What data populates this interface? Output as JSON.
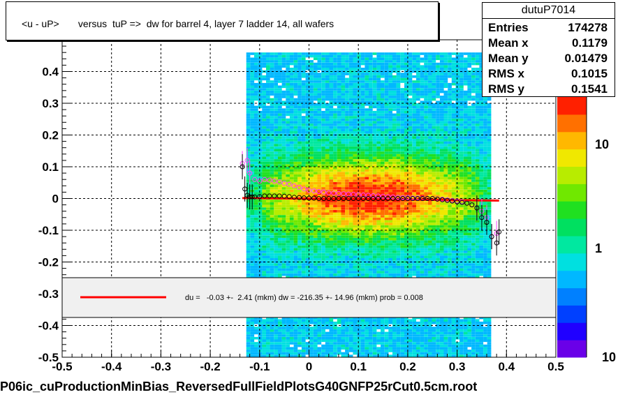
{
  "title": "<u - uP>       versus  tuP =>  dw for barrel 4, layer 7 ladder 14, all wafers",
  "stats": {
    "name": "dutuP7014",
    "rows": [
      {
        "label": "Entries",
        "value": "174278"
      },
      {
        "label": "Mean x",
        "value": "0.1179"
      },
      {
        "label": "Mean y",
        "value": "0.01479"
      },
      {
        "label": "RMS x",
        "value": "0.1015"
      },
      {
        "label": "RMS y",
        "value": "0.1541"
      }
    ]
  },
  "footer": "P06ic_cuProductionMinBias_ReversedFullFieldPlotsG40GNFP25rCut0.5cm.root",
  "legend": {
    "text": "du =   -0.03 +-  2.41 (mkm) dw = -216.35 +- 14.96 (mkm) prob = 0.008",
    "line_color": "#ff0000"
  },
  "chart_data": {
    "type": "heatmap",
    "xlim": [
      -0.5,
      0.5
    ],
    "ylim": [
      -0.5,
      0.5
    ],
    "x_ticks": [
      "-0.5",
      "-0.4",
      "-0.3",
      "-0.2",
      "-0.1",
      "0",
      "0.1",
      "0.2",
      "0.3",
      "0.4",
      "0.5"
    ],
    "y_ticks": [
      "-0.5",
      "-0.4",
      "-0.3",
      "-0.2",
      "-0.1",
      "0",
      "0.1",
      "0.2",
      "0.3",
      "0.4"
    ],
    "grid": true,
    "colorbar_labels": [
      "10",
      "1",
      "10"
    ],
    "fit_line": {
      "x": [
        -0.135,
        0.385
      ],
      "y": [
        0.0015,
        -0.0065
      ],
      "color": "#ff0000"
    },
    "profile_black": {
      "x": [
        -0.135,
        -0.13,
        -0.125,
        -0.12,
        -0.115,
        -0.11,
        -0.1,
        -0.09,
        -0.08,
        -0.07,
        -0.06,
        -0.05,
        -0.04,
        -0.03,
        -0.02,
        -0.01,
        0.0,
        0.01,
        0.02,
        0.03,
        0.04,
        0.05,
        0.06,
        0.07,
        0.08,
        0.09,
        0.1,
        0.11,
        0.12,
        0.13,
        0.14,
        0.15,
        0.16,
        0.17,
        0.18,
        0.19,
        0.2,
        0.21,
        0.22,
        0.23,
        0.24,
        0.25,
        0.26,
        0.27,
        0.28,
        0.29,
        0.3,
        0.31,
        0.32,
        0.33,
        0.34,
        0.35,
        0.36,
        0.37,
        0.38,
        0.385
      ],
      "y": [
        0.1,
        0.03,
        0.01,
        0.005,
        0.005,
        0.005,
        0.006,
        0.008,
        0.008,
        0.008,
        0.008,
        0.007,
        0.006,
        0.004,
        0.003,
        0.002,
        0.001,
        0.001,
        0.0,
        0.0,
        0.0,
        0.0,
        0.0,
        0.0,
        0.0,
        0.0,
        0.0,
        0.0,
        0.0,
        0.0,
        0.0,
        0.0,
        0.0,
        0.0,
        0.0,
        0.0,
        0.0,
        0.0,
        0.0,
        0.0,
        0.0,
        0.0,
        -0.002,
        -0.004,
        -0.006,
        -0.008,
        -0.01,
        -0.012,
        -0.015,
        -0.02,
        -0.03,
        -0.06,
        -0.075,
        -0.12,
        -0.14,
        -0.105
      ]
    },
    "profile_pink": {
      "x": [
        -0.135,
        -0.125,
        -0.12,
        -0.11,
        -0.1,
        -0.09,
        -0.08,
        -0.07,
        -0.06,
        -0.05,
        -0.04,
        -0.03,
        -0.02,
        -0.01,
        0.0,
        0.01,
        0.02,
        0.03,
        0.04,
        0.05,
        0.06,
        0.07,
        0.08,
        0.09,
        0.1,
        0.11,
        0.12,
        0.13,
        0.14,
        0.15,
        0.16,
        0.17,
        0.18,
        0.19,
        0.2,
        0.21,
        0.22,
        0.23,
        0.24,
        0.25,
        0.26,
        0.27,
        0.28,
        0.29,
        0.3,
        0.31,
        0.32,
        0.33,
        0.34,
        0.35,
        0.36,
        0.37,
        0.38
      ],
      "y": [
        0.11,
        0.12,
        0.08,
        0.06,
        0.055,
        0.06,
        0.058,
        0.055,
        0.052,
        0.048,
        0.045,
        0.04,
        0.035,
        0.03,
        0.026,
        0.024,
        0.022,
        0.02,
        0.018,
        0.017,
        0.016,
        0.015,
        0.014,
        0.013,
        0.012,
        0.011,
        0.01,
        0.009,
        0.008,
        0.007,
        0.006,
        0.005,
        0.004,
        0.003,
        0.003,
        0.002,
        0.002,
        0.001,
        0.0,
        0.0,
        -0.001,
        -0.002,
        -0.004,
        -0.006,
        -0.008,
        -0.01,
        -0.015,
        -0.02,
        -0.03,
        -0.04,
        -0.06,
        -0.12,
        -0.11
      ]
    }
  }
}
